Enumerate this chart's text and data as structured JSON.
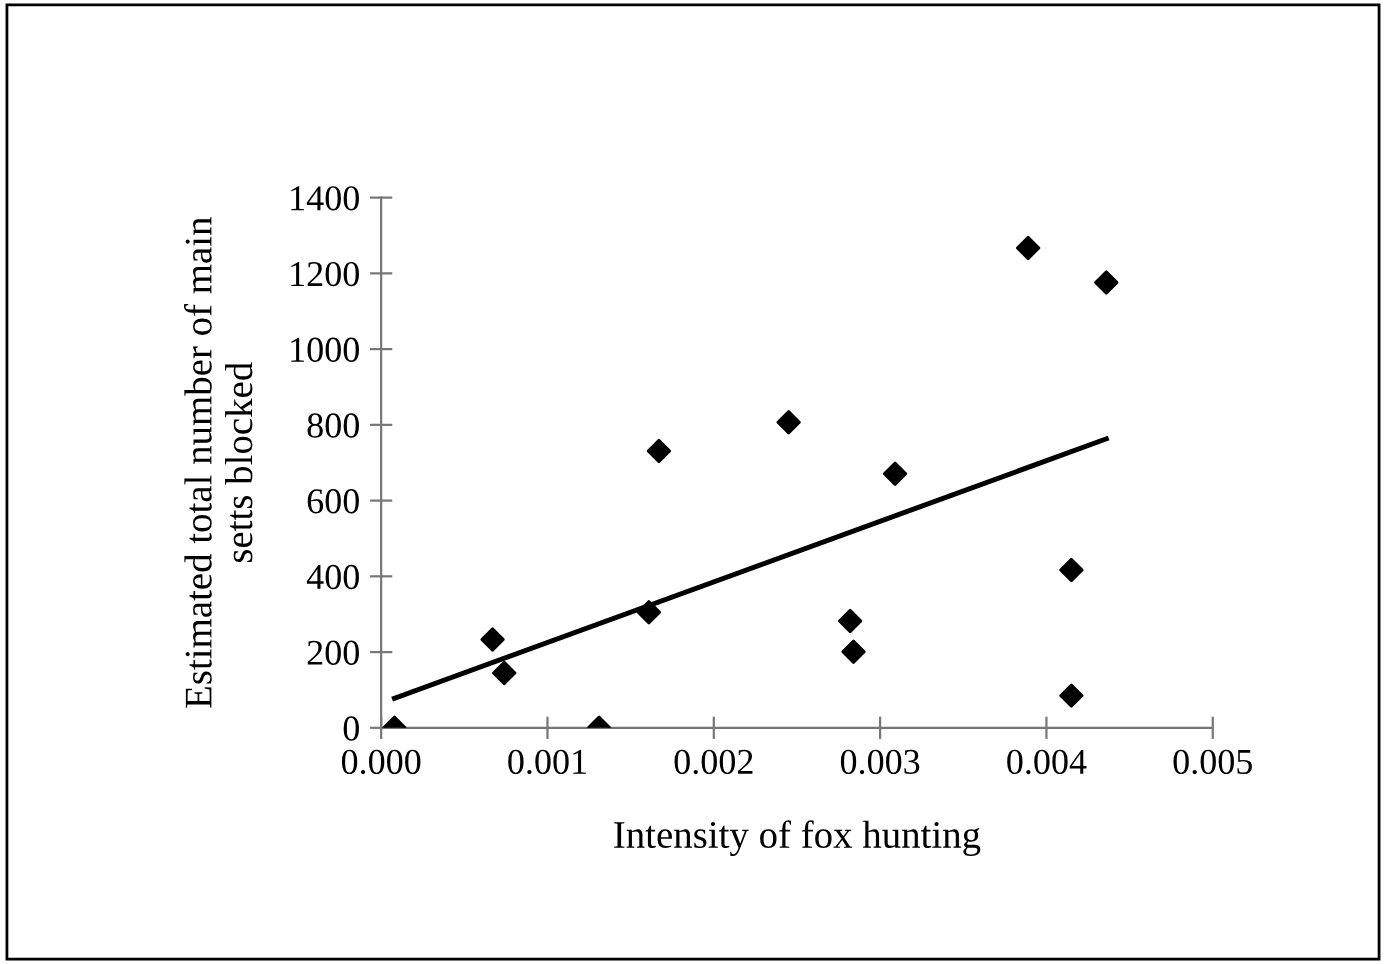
{
  "chart_data": {
    "type": "scatter",
    "xlabel": "Intensity of fox hunting",
    "ylabel": "Estimated total number of main setts blocked",
    "xlim": [
      0,
      0.005
    ],
    "ylim": [
      0,
      1400
    ],
    "xticks": [
      {
        "value": 0,
        "label": "0.000"
      },
      {
        "value": 0.001,
        "label": "0.001"
      },
      {
        "value": 0.002,
        "label": "0.002"
      },
      {
        "value": 0.003,
        "label": "0.003"
      },
      {
        "value": 0.004,
        "label": "0.004"
      },
      {
        "value": 0.005,
        "label": "0.005"
      }
    ],
    "yticks": [
      0,
      200,
      400,
      600,
      800,
      1000,
      1200,
      1400
    ],
    "grid": false,
    "legend": false,
    "series": [
      {
        "color": "#000000",
        "marker": "diamond",
        "x": [
          8e-05,
          0.00067,
          0.00074,
          0.00131,
          0.00161,
          0.00167,
          0.00245,
          0.00282,
          0.00284,
          0.00309,
          0.00389,
          0.00436,
          0.00415,
          0.00415
        ],
        "values": [
          0,
          233,
          145,
          0,
          305,
          731,
          807,
          282,
          201,
          671,
          1267,
          1176,
          417,
          85
        ]
      },
      {
        "type": "line",
        "color": "#000000",
        "marker": "none",
        "line_style": "solid",
        "x": [
          8e-05,
          0.00436
        ],
        "values": [
          78,
          763
        ]
      }
    ]
  }
}
